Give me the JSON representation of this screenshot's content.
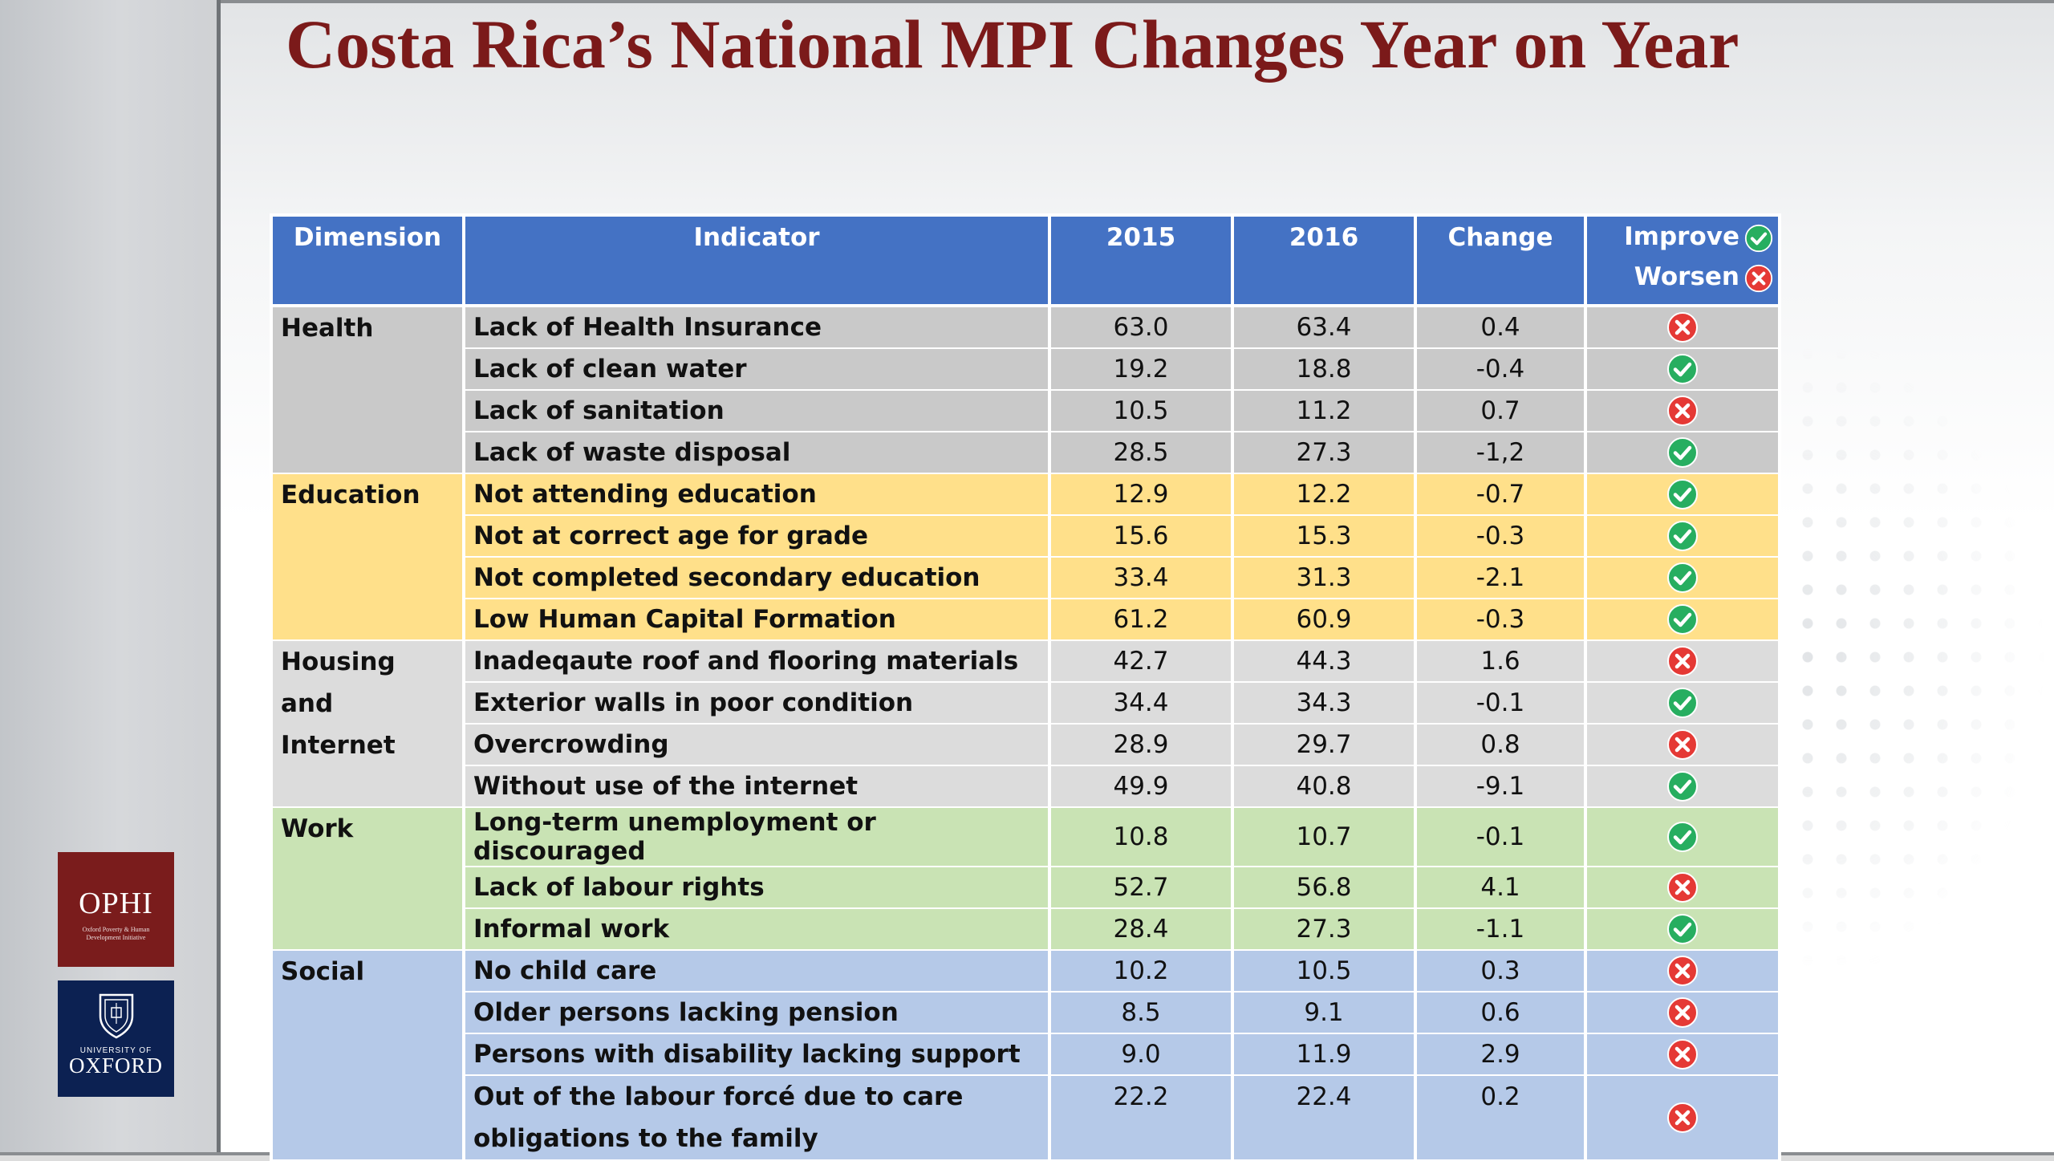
{
  "title": "Costa Rica’s National MPI Changes Year on Year",
  "logos": {
    "ophi_main": "OPHI",
    "ophi_sub": "Oxford Poverty & Human Development Initiative",
    "oxford_small": "UNIVERSITY OF",
    "oxford_main": "OXFORD"
  },
  "headers": {
    "dimension": "Dimension",
    "indicator": "Indicator",
    "year1": "2015",
    "year2": "2016",
    "change": "Change",
    "improve": "Improve",
    "worsen": "Worsen"
  },
  "colors": {
    "header": "#4472c4",
    "health": "#c9c9c9",
    "education": "#ffe08a",
    "housing": "#dcdcdc",
    "work": "#c9e3b4",
    "social": "#b5c9e8",
    "improve_icon": "#27ae60",
    "worsen_icon": "#e53935",
    "title": "#7b1a1a"
  },
  "groups": [
    {
      "dimension": "Health",
      "rows": [
        {
          "indicator": "Lack of Health Insurance",
          "y2015": "63.0",
          "y2016": "63.4",
          "change": "0.4",
          "status": "worsen"
        },
        {
          "indicator": "Lack of clean water",
          "y2015": "19.2",
          "y2016": "18.8",
          "change": "-0.4",
          "status": "improve"
        },
        {
          "indicator": "Lack of sanitation",
          "y2015": "10.5",
          "y2016": "11.2",
          "change": "0.7",
          "status": "worsen"
        },
        {
          "indicator": "Lack of waste disposal",
          "y2015": "28.5",
          "y2016": "27.3",
          "change": "-1,2",
          "status": "improve"
        }
      ]
    },
    {
      "dimension": "Education",
      "rows": [
        {
          "indicator": "Not attending education",
          "y2015": "12.9",
          "y2016": "12.2",
          "change": "-0.7",
          "status": "improve"
        },
        {
          "indicator": "Not at correct age for grade",
          "y2015": "15.6",
          "y2016": "15.3",
          "change": "-0.3",
          "status": "improve"
        },
        {
          "indicator": "Not completed secondary education",
          "y2015": "33.4",
          "y2016": "31.3",
          "change": "-2.1",
          "status": "improve"
        },
        {
          "indicator": "Low Human Capital Formation",
          "y2015": "61.2",
          "y2016": "60.9",
          "change": "-0.3",
          "status": "improve"
        }
      ]
    },
    {
      "dimension": "Housing and Internet",
      "rows": [
        {
          "indicator": "Inadeqaute roof and flooring materials",
          "y2015": "42.7",
          "y2016": "44.3",
          "change": "1.6",
          "status": "worsen"
        },
        {
          "indicator": "Exterior walls in poor condition",
          "y2015": "34.4",
          "y2016": "34.3",
          "change": "-0.1",
          "status": "improve"
        },
        {
          "indicator": "Overcrowding",
          "y2015": "28.9",
          "y2016": "29.7",
          "change": "0.8",
          "status": "worsen"
        },
        {
          "indicator": "Without use of the internet",
          "y2015": "49.9",
          "y2016": "40.8",
          "change": "-9.1",
          "status": "improve"
        }
      ]
    },
    {
      "dimension": "Work",
      "rows": [
        {
          "indicator": "Long-term unemployment or discouraged",
          "y2015": "10.8",
          "y2016": "10.7",
          "change": "-0.1",
          "status": "improve"
        },
        {
          "indicator": "Lack of labour rights",
          "y2015": "52.7",
          "y2016": "56.8",
          "change": "4.1",
          "status": "worsen"
        },
        {
          "indicator": "Informal work",
          "y2015": "28.4",
          "y2016": "27.3",
          "change": "-1.1",
          "status": "improve"
        }
      ]
    },
    {
      "dimension": "Social",
      "rows": [
        {
          "indicator": "No child care",
          "y2015": "10.2",
          "y2016": "10.5",
          "change": "0.3",
          "status": "worsen"
        },
        {
          "indicator": "Older persons lacking pension",
          "y2015": "8.5",
          "y2016": "9.1",
          "change": "0.6",
          "status": "worsen"
        },
        {
          "indicator": "Persons with disability lacking support",
          "y2015": "9.0",
          "y2016": "11.9",
          "change": "2.9",
          "status": "worsen"
        },
        {
          "indicator": "Out of the labour forcé due to care obligations to the family",
          "y2015": "22.2",
          "y2016": "22.4",
          "change": "0.2",
          "status": "worsen"
        }
      ]
    }
  ]
}
